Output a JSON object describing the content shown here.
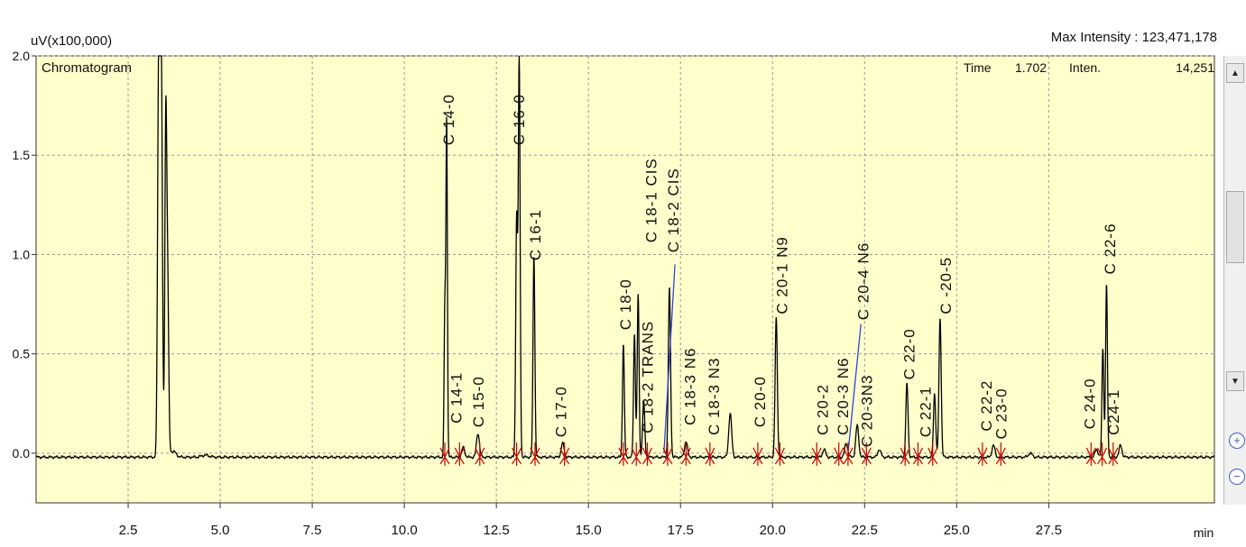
{
  "header": {
    "y_unit": "uV(x100,000)",
    "max_intensity": "Max Intensity : 123,471,178",
    "panel_label": "Chromatogram",
    "time_label": "Time",
    "time_value": "1.702",
    "inten_label": "Inten.",
    "inten_value": "14,251"
  },
  "colors": {
    "plot_bg": "#ffffcc",
    "trace": "#000000",
    "grid": "#9a9a9a",
    "marker": "#cc0000",
    "integration": "#2d43d6"
  },
  "chart_data": {
    "type": "line",
    "title": "Chromatogram",
    "xlabel": "min",
    "ylabel": "uV(x100,000)",
    "xlim": [
      0.0,
      32.0
    ],
    "ylim": [
      -0.25,
      2.0
    ],
    "x_ticks": [
      {
        "v": 2.5,
        "label": "2.5"
      },
      {
        "v": 5.0,
        "label": "5.0"
      },
      {
        "v": 7.5,
        "label": "7.5"
      },
      {
        "v": 10.0,
        "label": "10.0"
      },
      {
        "v": 12.5,
        "label": "12.5"
      },
      {
        "v": 15.0,
        "label": "15.0"
      },
      {
        "v": 17.5,
        "label": "17.5"
      },
      {
        "v": 20.0,
        "label": "20.0"
      },
      {
        "v": 22.5,
        "label": "22.5"
      },
      {
        "v": 25.0,
        "label": "25.0"
      },
      {
        "v": 27.5,
        "label": "27.5"
      }
    ],
    "x_unit_label": "min",
    "y_ticks": [
      {
        "v": 2.0,
        "label": "2.0"
      },
      {
        "v": 1.5,
        "label": "1.5"
      },
      {
        "v": 1.0,
        "label": "1.0"
      },
      {
        "v": 0.5,
        "label": "0.5"
      },
      {
        "v": 0.0,
        "label": "0.0"
      }
    ],
    "grid": true,
    "baseline": -0.02,
    "peaks": [
      {
        "x": 3.33,
        "y": 2.0,
        "w": 0.03
      },
      {
        "x": 3.4,
        "y": 2.0,
        "w": 0.03
      },
      {
        "x": 3.52,
        "y": 1.56,
        "w": 0.025
      },
      {
        "x": 3.57,
        "y": 0.9,
        "w": 0.03
      },
      {
        "x": 3.72,
        "y": 0.03,
        "w": 0.08
      },
      {
        "x": 4.6,
        "y": 0.01,
        "w": 0.1
      },
      {
        "x": 11.1,
        "y": 0.74,
        "w": 0.02
      },
      {
        "x": 11.15,
        "y": 1.69,
        "w": 0.02
      },
      {
        "x": 11.6,
        "y": 0.05,
        "w": 0.04
      },
      {
        "x": 12.0,
        "y": 0.12,
        "w": 0.04
      },
      {
        "x": 13.05,
        "y": 1.2,
        "w": 0.025
      },
      {
        "x": 13.12,
        "y": 2.0,
        "w": 0.025
      },
      {
        "x": 13.52,
        "y": 1.02,
        "w": 0.025
      },
      {
        "x": 14.3,
        "y": 0.07,
        "w": 0.04
      },
      {
        "x": 15.95,
        "y": 0.57,
        "w": 0.025
      },
      {
        "x": 16.25,
        "y": 0.62,
        "w": 0.025
      },
      {
        "x": 16.35,
        "y": 0.82,
        "w": 0.025
      },
      {
        "x": 16.5,
        "y": 0.28,
        "w": 0.03
      },
      {
        "x": 17.2,
        "y": 0.85,
        "w": 0.03
      },
      {
        "x": 17.65,
        "y": 0.08,
        "w": 0.04
      },
      {
        "x": 18.85,
        "y": 0.22,
        "w": 0.04
      },
      {
        "x": 20.1,
        "y": 0.7,
        "w": 0.03
      },
      {
        "x": 21.4,
        "y": 0.04,
        "w": 0.04
      },
      {
        "x": 22.0,
        "y": 0.07,
        "w": 0.04
      },
      {
        "x": 22.3,
        "y": 0.16,
        "w": 0.04
      },
      {
        "x": 22.9,
        "y": 0.04,
        "w": 0.04
      },
      {
        "x": 23.65,
        "y": 0.37,
        "w": 0.03
      },
      {
        "x": 24.4,
        "y": 0.32,
        "w": 0.03
      },
      {
        "x": 24.55,
        "y": 0.7,
        "w": 0.03
      },
      {
        "x": 26.0,
        "y": 0.06,
        "w": 0.04
      },
      {
        "x": 27.0,
        "y": 0.02,
        "w": 0.05
      },
      {
        "x": 28.8,
        "y": 0.04,
        "w": 0.04
      },
      {
        "x": 28.97,
        "y": 0.55,
        "w": 0.025
      },
      {
        "x": 29.07,
        "y": 0.87,
        "w": 0.025
      },
      {
        "x": 29.45,
        "y": 0.06,
        "w": 0.04
      }
    ],
    "peak_labels": [
      {
        "text": "C 14-0",
        "x": 11.35,
        "y": 1.55
      },
      {
        "text": "C 14-1",
        "x": 11.55,
        "y": 0.15
      },
      {
        "text": "C 15-0",
        "x": 12.15,
        "y": 0.13
      },
      {
        "text": "C 16-0",
        "x": 13.25,
        "y": 1.55
      },
      {
        "text": "C 16-1",
        "x": 13.7,
        "y": 0.97
      },
      {
        "text": "C 17-0",
        "x": 14.4,
        "y": 0.08
      },
      {
        "text": "C 18-0",
        "x": 16.15,
        "y": 0.62
      },
      {
        "text": "C 18-2 TRANS",
        "x": 16.75,
        "y": 0.1
      },
      {
        "text": "C 18-1 CIS",
        "x": 16.85,
        "y": 1.06
      },
      {
        "text": "C 18-2 CIS",
        "x": 17.45,
        "y": 1.01
      },
      {
        "text": "C 18-3 N6",
        "x": 17.9,
        "y": 0.14
      },
      {
        "text": "C 18-3 N3",
        "x": 18.55,
        "y": 0.09
      },
      {
        "text": "C 20-0",
        "x": 19.8,
        "y": 0.13
      },
      {
        "text": "C 20-1 N9",
        "x": 20.4,
        "y": 0.7
      },
      {
        "text": "C 20-2",
        "x": 21.5,
        "y": 0.09
      },
      {
        "text": "C 20-3 N6",
        "x": 22.05,
        "y": 0.09
      },
      {
        "text": "C 20-4 N6",
        "x": 22.6,
        "y": 0.67
      },
      {
        "text": "C 20-3N3",
        "x": 22.7,
        "y": 0.03
      },
      {
        "text": "C 22-0",
        "x": 23.85,
        "y": 0.37
      },
      {
        "text": "C 22-1",
        "x": 24.3,
        "y": 0.08
      },
      {
        "text": "C -20-5",
        "x": 24.85,
        "y": 0.7
      },
      {
        "text": "C 22-2",
        "x": 25.95,
        "y": 0.11
      },
      {
        "text": "C 23-0",
        "x": 26.35,
        "y": 0.07
      },
      {
        "text": "C 24-0",
        "x": 28.75,
        "y": 0.12
      },
      {
        "text": "C 22-6",
        "x": 29.3,
        "y": 0.9
      },
      {
        "text": "C24-1",
        "x": 29.4,
        "y": 0.09
      }
    ],
    "integration_marks": [
      11.1,
      11.5,
      12.05,
      13.05,
      13.55,
      14.35,
      15.95,
      16.3,
      16.6,
      17.15,
      17.65,
      18.3,
      19.6,
      20.2,
      21.2,
      21.8,
      22.05,
      22.55,
      23.6,
      23.95,
      24.35,
      25.7,
      26.2,
      28.65,
      28.95,
      29.25
    ],
    "integration_segments": [
      {
        "x0": 17.05,
        "y0": 0.0,
        "x1": 17.35,
        "y1": 0.95
      },
      {
        "x0": 22.05,
        "y0": 0.0,
        "x1": 22.4,
        "y1": 0.65
      }
    ]
  }
}
